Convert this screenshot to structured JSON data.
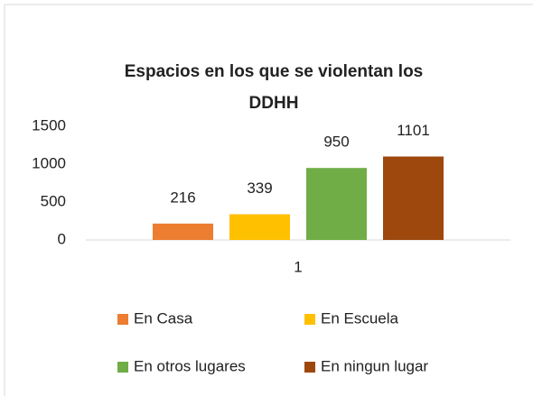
{
  "chart_data": {
    "type": "bar",
    "title": [
      "Espacios en los que se violentan los",
      "DDHH"
    ],
    "categories": [
      "1"
    ],
    "series": [
      {
        "name": "En Casa",
        "color": "#ed7d31",
        "values": [
          216
        ]
      },
      {
        "name": "En Escuela",
        "color": "#ffc000",
        "values": [
          339
        ]
      },
      {
        "name": "En otros lugares",
        "color": "#70ad47",
        "values": [
          950
        ]
      },
      {
        "name": "En ningun lugar",
        "color": "#9e480e",
        "values": [
          1101
        ]
      }
    ],
    "ylim": [
      0,
      1500
    ],
    "yticks": [
      0,
      500,
      1000,
      1500
    ],
    "grid": false,
    "data_labels": true,
    "legend": "bottom"
  }
}
